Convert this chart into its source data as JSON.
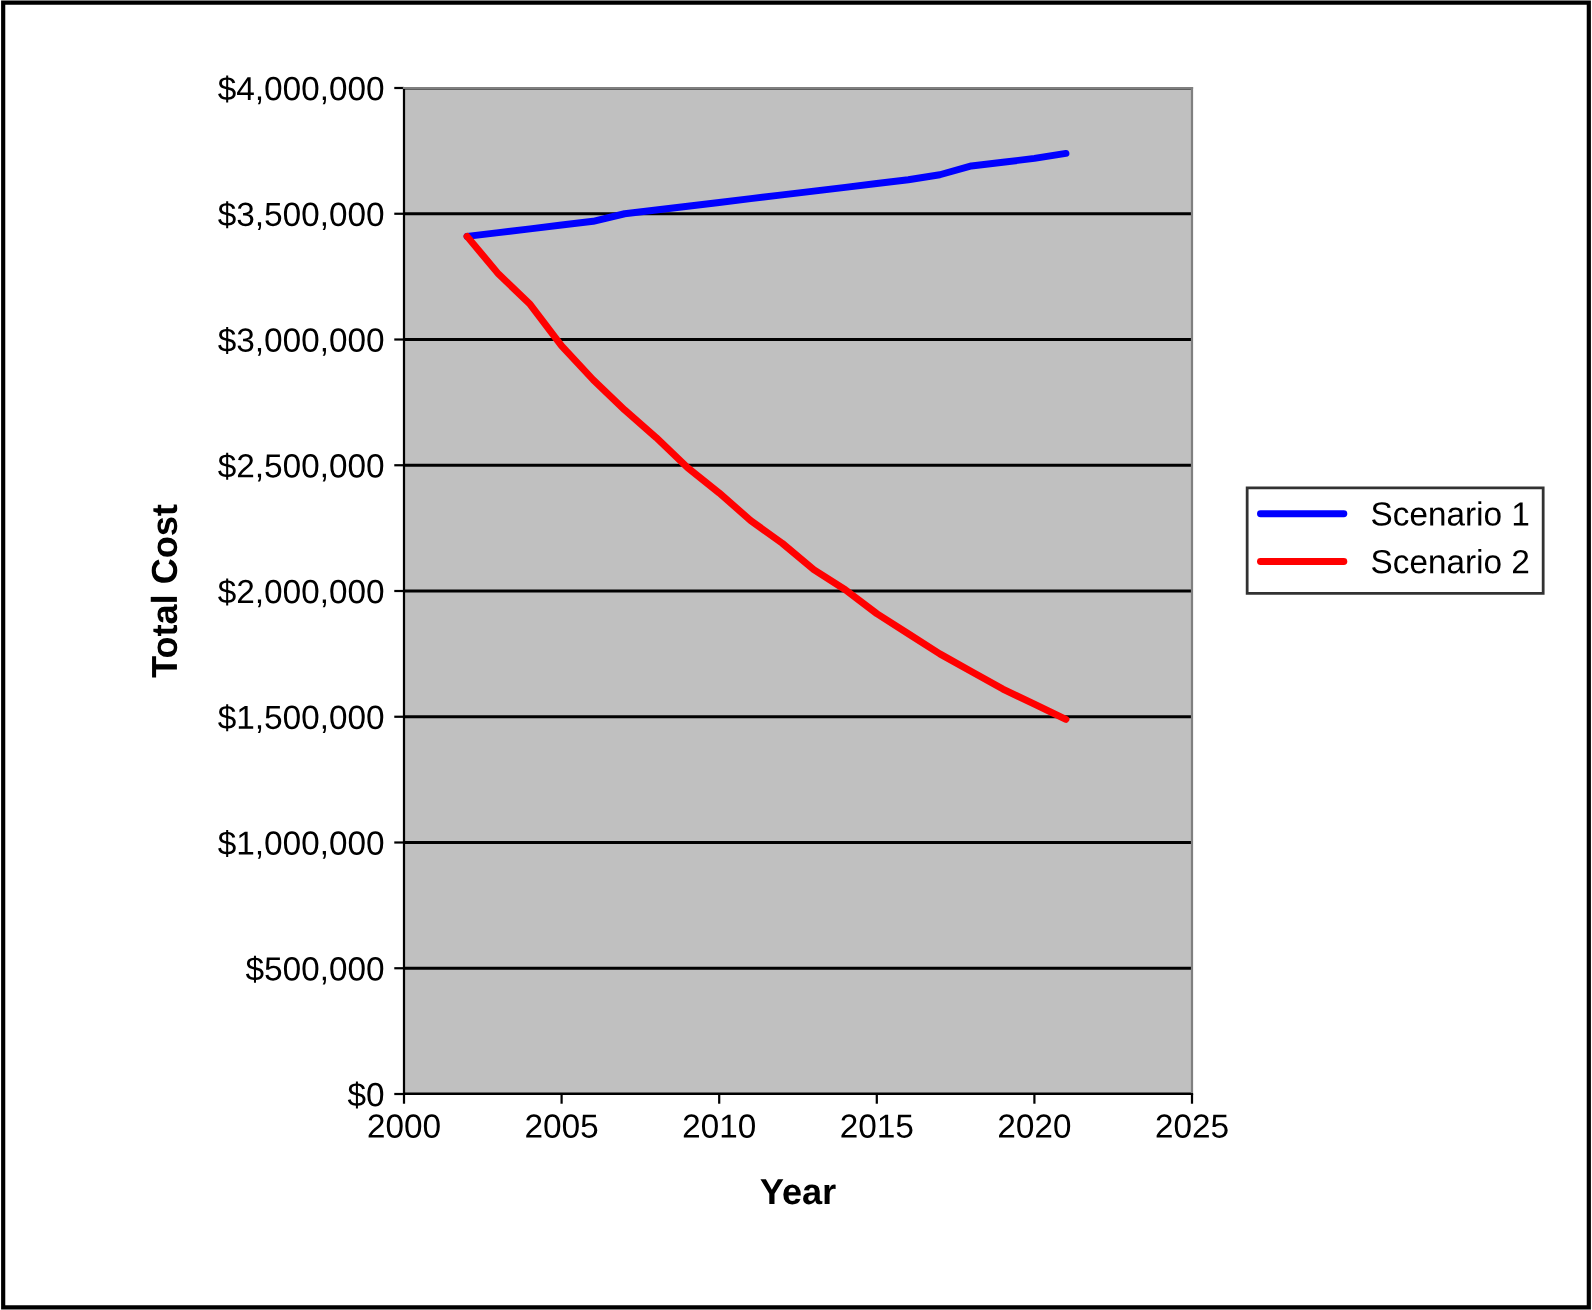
{
  "chart_data": {
    "type": "line",
    "xlabel": "Year",
    "ylabel": "Total Cost",
    "x": [
      2002,
      2003,
      2004,
      2005,
      2006,
      2007,
      2008,
      2009,
      2010,
      2011,
      2012,
      2013,
      2014,
      2015,
      2016,
      2017,
      2018,
      2019,
      2020,
      2021
    ],
    "series": [
      {
        "name": "Scenario 1",
        "color": "#0000ff",
        "values": [
          3410000,
          3425000,
          3440000,
          3455000,
          3470000,
          3500000,
          3515000,
          3530000,
          3545000,
          3560000,
          3575000,
          3590000,
          3605000,
          3620000,
          3635000,
          3655000,
          3690000,
          3705000,
          3720000,
          3740000
        ]
      },
      {
        "name": "Scenario 2",
        "color": "#ff0000",
        "values": [
          3410000,
          3260000,
          3140000,
          2975000,
          2840000,
          2720000,
          2610000,
          2490000,
          2390000,
          2280000,
          2190000,
          2085000,
          2005000,
          1910000,
          1830000,
          1750000,
          1680000,
          1610000,
          1550000,
          1490000
        ]
      }
    ],
    "xlim": [
      2000,
      2025
    ],
    "xticks": [
      2000,
      2005,
      2010,
      2015,
      2020,
      2025
    ],
    "ylim": [
      0,
      4000000
    ],
    "yticks": [
      {
        "value": 0,
        "label": "$0"
      },
      {
        "value": 500000,
        "label": "$500,000"
      },
      {
        "value": 1000000,
        "label": "$1,000,000"
      },
      {
        "value": 1500000,
        "label": "$1,500,000"
      },
      {
        "value": 2000000,
        "label": "$2,000,000"
      },
      {
        "value": 2500000,
        "label": "$2,500,000"
      },
      {
        "value": 3000000,
        "label": "$3,000,000"
      },
      {
        "value": 3500000,
        "label": "$3,500,000"
      },
      {
        "value": 4000000,
        "label": "$4,000,000"
      }
    ],
    "grid": "y",
    "legend": "right",
    "marker": "none",
    "line_style": "solid"
  }
}
